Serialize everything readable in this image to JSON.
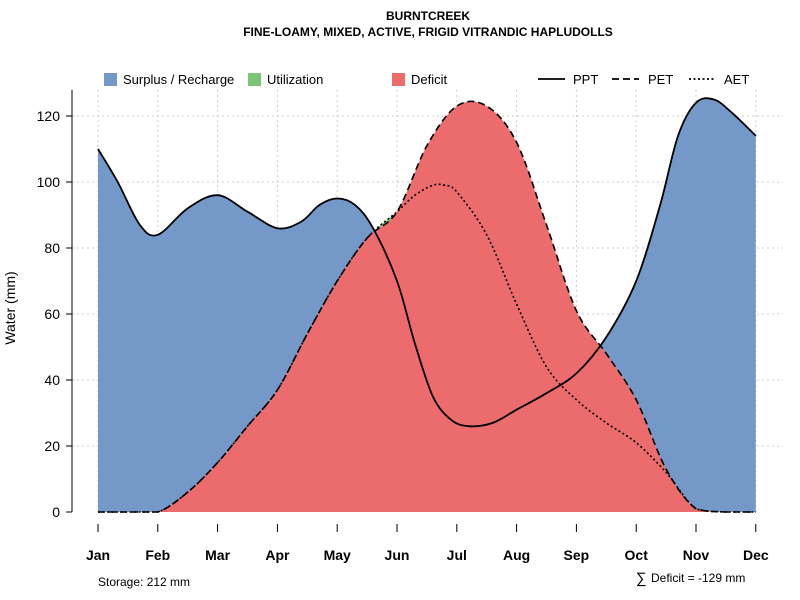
{
  "chart_data": {
    "type": "area",
    "title": "BURNTCREEK",
    "subtitle": "FINE-LOAMY, MIXED, ACTIVE, FRIGID VITRANDIC HAPLUDOLLS",
    "ylabel": "Water (mm)",
    "xlabel": "",
    "ylim": [
      0,
      127
    ],
    "yticks": [
      0,
      20,
      40,
      60,
      80,
      100,
      120
    ],
    "categories": [
      "Jan",
      "Feb",
      "Mar",
      "Apr",
      "May",
      "Jun",
      "Jul",
      "Aug",
      "Sep",
      "Oct",
      "Nov",
      "Dec"
    ],
    "grid": true,
    "series": [
      {
        "name": "PPT",
        "style": "solid",
        "x": [
          0,
          0.33,
          0.7,
          1,
          1.5,
          2,
          2.5,
          3,
          3.4,
          3.7,
          4,
          4.3,
          4.6,
          5,
          5.3,
          5.6,
          5.9,
          6.2,
          6.6,
          7,
          7.5,
          8,
          8.5,
          9,
          9.4,
          9.7,
          10,
          10.3,
          10.6,
          11
        ],
        "values": [
          110,
          100,
          87,
          84,
          92,
          96,
          91,
          86,
          88,
          93,
          95,
          93,
          86,
          70,
          51,
          35,
          28,
          26,
          27,
          31,
          36,
          42,
          53,
          70,
          93,
          114,
          124,
          125,
          121,
          114
        ]
      },
      {
        "name": "PET",
        "style": "dashed",
        "x": [
          0,
          0.5,
          1,
          1.5,
          2,
          2.5,
          3,
          3.5,
          4,
          4.5,
          5,
          5.5,
          6,
          6.5,
          7,
          7.5,
          8,
          8.5,
          9,
          9.5,
          10,
          10.5,
          11
        ],
        "values": [
          0,
          0,
          0,
          6,
          15,
          26,
          37,
          54,
          70,
          83,
          91,
          111,
          123,
          123,
          112,
          87,
          61,
          48,
          34,
          13,
          1,
          0,
          0
        ]
      },
      {
        "name": "AET",
        "style": "dotted",
        "x": [
          0,
          0.5,
          1,
          1.5,
          2,
          2.5,
          3,
          3.5,
          4,
          4.5,
          5,
          5.3,
          5.6,
          5.8,
          6,
          6.5,
          7,
          7.5,
          8,
          8.5,
          9,
          9.5,
          10,
          10.5,
          11
        ],
        "values": [
          0,
          0,
          0,
          6,
          15,
          26,
          37,
          54,
          70,
          83,
          91,
          96,
          99,
          99,
          97,
          84,
          63,
          44,
          34,
          27,
          21,
          12,
          1,
          0,
          0
        ]
      }
    ],
    "legend": {
      "placement": "top",
      "entries": [
        {
          "label": "Surplus / Recharge",
          "kind": "fill",
          "color": "#7499C9"
        },
        {
          "label": "Utilization",
          "kind": "fill",
          "color": "#7DC47A"
        },
        {
          "label": "Deficit",
          "kind": "fill",
          "color": "#EC6B6D"
        },
        {
          "label": "PPT",
          "kind": "line",
          "style": "solid"
        },
        {
          "label": "PET",
          "kind": "line",
          "style": "dashed"
        },
        {
          "label": "AET",
          "kind": "line",
          "style": "dotted"
        }
      ]
    },
    "colors": {
      "surplus": "#7499C9",
      "utilization": "#7DC47A",
      "deficit": "#EC6B6D",
      "grid": "#cccccc",
      "line": "#000000"
    },
    "annotations": {
      "storage": "Storage: 212 mm",
      "deficit_symbol": "∑",
      "deficit": "Deficit = -129 mm"
    }
  }
}
